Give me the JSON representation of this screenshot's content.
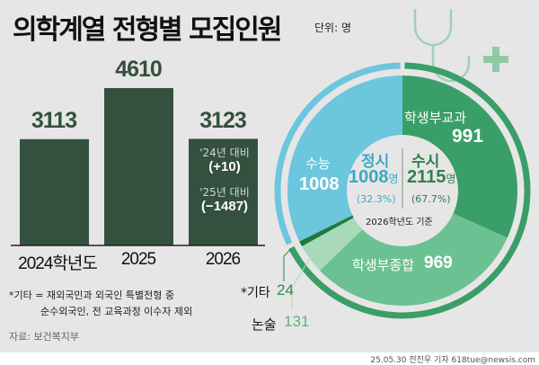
{
  "title": "의학계열 전형별 모집인원",
  "unit": "단위: 명",
  "chart_data": [
    {
      "type": "bar",
      "categories": [
        "2024학년도",
        "2025",
        "2026"
      ],
      "values": [
        3113,
        4610,
        3123
      ],
      "annotations": [
        {
          "label": "'24년 대비",
          "value": "(+10)"
        },
        {
          "label": "'25년 대비",
          "value": "(−1487)"
        }
      ],
      "color": "#34503f"
    },
    {
      "type": "pie",
      "subtitle": "2026학년도 기준",
      "slices": [
        {
          "name": "학생부교과",
          "value": 991,
          "color": "#3a9e68"
        },
        {
          "name": "학생부종합",
          "value": 969,
          "color": "#6cc192"
        },
        {
          "name": "논술",
          "value": 131,
          "color": "#a8d9b8"
        },
        {
          "name": "*기타",
          "value": 24,
          "color": "#1e7a3e"
        },
        {
          "name": "수능",
          "value": 1008,
          "color": "#6cc6dd"
        }
      ],
      "groups": [
        {
          "name": "정시",
          "value": "1008",
          "unit": "명",
          "pct": "(32.3%)",
          "color": "#3aa9c4"
        },
        {
          "name": "수시",
          "value": "2115",
          "unit": "명",
          "pct": "(67.7%)",
          "color": "#2f7f4c"
        }
      ]
    }
  ],
  "notes": [
    "*기타 = 재외국민과 외국인 특별전형 중",
    "순수외국인, 전 교육과정 이수자 제외"
  ],
  "source": "자료: 보건복지부",
  "logo": "뉴시스",
  "credit": "25.05.30 전진우 기자 618tue@newsis.com"
}
